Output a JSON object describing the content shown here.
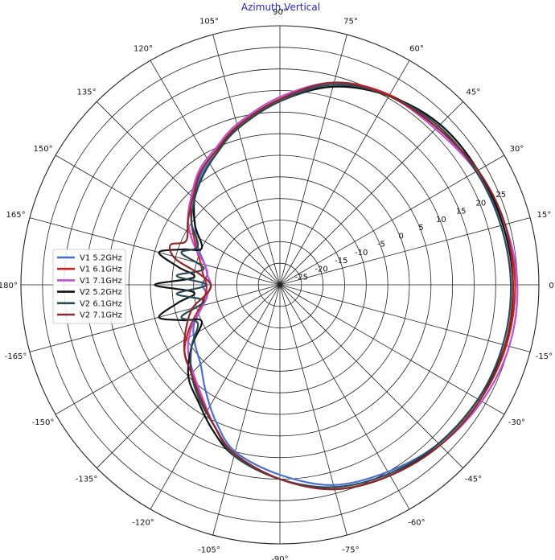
{
  "chart_data": {
    "type": "polar-line",
    "title": "Azimuth,Vertical",
    "angle_unit": "deg",
    "angle_direction": "counterclockwise",
    "zero_angle_location": "right",
    "radial_axis": {
      "range": [
        -30,
        30
      ],
      "tick_labels": [
        "-25",
        "-20",
        "-15",
        "-10",
        "-5",
        "0",
        "5",
        "10",
        "15",
        "20",
        "25"
      ],
      "label_angle_deg": 22.5,
      "gridline_values": [
        -25,
        -20,
        -15,
        -10,
        -5,
        0,
        5,
        10,
        15,
        20,
        25,
        30
      ]
    },
    "angle_axis": {
      "gridline_step_deg": 15,
      "tick_labels": [
        "0°",
        "15°",
        "30°",
        "45°",
        "60°",
        "75°",
        "90°",
        "105°",
        "120°",
        "135°",
        "150°",
        "165°",
        "-180°",
        "-165°",
        "-150°",
        "-135°",
        "-120°",
        "-105°",
        "-90°",
        "-75°",
        "-60°",
        "-45°",
        "-30°",
        "-15°"
      ],
      "tick_angles_deg": [
        0,
        15,
        30,
        45,
        60,
        75,
        90,
        105,
        120,
        135,
        150,
        165,
        180,
        195,
        210,
        225,
        240,
        255,
        270,
        285,
        300,
        315,
        330,
        345
      ]
    },
    "grid": true,
    "legend_position": "left",
    "series": [
      {
        "name": "V1 5.2GHz",
        "color": "#4a6fd0",
        "angles_deg": [
          0,
          15,
          30,
          45,
          60,
          75,
          90,
          105,
          115,
          125,
          135,
          145,
          155,
          165,
          172,
          180,
          188,
          195,
          205,
          215,
          225,
          235,
          245,
          255,
          270,
          285,
          300,
          315,
          330,
          345
        ],
        "values": [
          24,
          23.5,
          22.5,
          21.5,
          20.5,
          18,
          13,
          8,
          4,
          1.5,
          -2,
          -6,
          -9,
          -12,
          -13,
          -12,
          -13,
          -11.5,
          -8,
          -6,
          -4,
          0,
          5,
          10,
          14,
          18,
          20,
          22,
          23,
          24
        ]
      },
      {
        "name": "V1 6.1GHz",
        "color": "#cc2222",
        "angles_deg": [
          0,
          15,
          30,
          45,
          60,
          75,
          90,
          105,
          115,
          125,
          135,
          145,
          155,
          165,
          172,
          180,
          188,
          195,
          205,
          215,
          225,
          235,
          245,
          255,
          270,
          285,
          300,
          315,
          330,
          345
        ],
        "values": [
          24.5,
          24,
          23,
          21.5,
          20.8,
          18.5,
          13,
          8,
          4.5,
          2,
          -1,
          -5,
          -8.5,
          -11,
          -12,
          -13,
          -12.5,
          -11,
          -7,
          -3,
          -1,
          2,
          6,
          11,
          15,
          19,
          21,
          22.5,
          23.5,
          24.3
        ]
      },
      {
        "name": "V1 7.1GHz",
        "color": "#c050d0",
        "angles_deg": [
          0,
          15,
          30,
          45,
          60,
          75,
          90,
          105,
          115,
          125,
          135,
          145,
          155,
          165,
          172,
          180,
          188,
          195,
          205,
          215,
          225,
          235,
          245,
          255,
          270,
          285,
          300,
          315,
          330,
          345
        ],
        "values": [
          25,
          24,
          22.5,
          21,
          20.5,
          18.5,
          13.5,
          8.5,
          5,
          2.5,
          -1,
          -4,
          -8,
          -12,
          -13,
          -14,
          -13,
          -11.5,
          -7.5,
          -4,
          -1.5,
          1.5,
          6,
          10.5,
          15,
          19,
          21,
          22.5,
          24,
          25
        ]
      },
      {
        "name": "V2 5.2GHz",
        "color": "#111111",
        "angles_deg": [
          0,
          15,
          30,
          45,
          60,
          75,
          90,
          105,
          115,
          125,
          135,
          145,
          155,
          160,
          165,
          170,
          175,
          180,
          185,
          190,
          195,
          200,
          205,
          215,
          225,
          235,
          245,
          255,
          270,
          285,
          300,
          315,
          330,
          345
        ],
        "values": [
          24,
          23.5,
          23,
          22.5,
          20.5,
          17.5,
          12.5,
          7.5,
          4,
          1,
          -2,
          -6,
          -10,
          -6,
          -1,
          -6,
          -10,
          -1,
          -10,
          -6,
          -1,
          -6,
          -10,
          -5,
          0,
          3,
          7,
          11,
          15,
          19,
          21,
          22,
          23,
          24
        ]
      },
      {
        "name": "V2 6.1GHz",
        "color": "#2b4a55",
        "angles_deg": [
          0,
          15,
          30,
          45,
          60,
          75,
          90,
          105,
          115,
          125,
          135,
          145,
          155,
          162,
          168,
          175,
          180,
          185,
          192,
          198,
          205,
          215,
          225,
          235,
          245,
          255,
          270,
          285,
          300,
          315,
          330,
          345
        ],
        "values": [
          23.5,
          23,
          22.5,
          22,
          20.5,
          18,
          12.5,
          7.5,
          4,
          1,
          -2,
          -5,
          -9,
          -6,
          -12,
          -6,
          -13,
          -6,
          -12,
          -6,
          -9,
          -5,
          -1,
          2.5,
          6,
          11,
          15,
          18.5,
          20.5,
          22,
          23,
          23.5
        ]
      },
      {
        "name": "V2 7.1GHz",
        "color": "#8b2a2a",
        "angles_deg": [
          0,
          15,
          30,
          45,
          60,
          75,
          90,
          105,
          115,
          125,
          135,
          145,
          155,
          160,
          166,
          172,
          180,
          188,
          195,
          205,
          215,
          225,
          235,
          245,
          255,
          270,
          285,
          300,
          315,
          330,
          345
        ],
        "values": [
          24,
          24,
          23,
          21.5,
          20.5,
          18.5,
          13,
          8,
          4.5,
          2,
          -1.5,
          -4,
          -6,
          -3,
          -5,
          -11,
          -14,
          -12.5,
          -9,
          -6,
          -3,
          -1,
          2,
          6,
          10.5,
          15,
          19,
          21,
          22.5,
          23.5,
          24
        ]
      }
    ]
  }
}
